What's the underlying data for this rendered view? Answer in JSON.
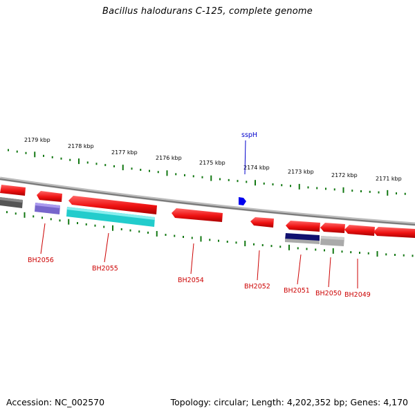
{
  "title": "Bacillus halodurans C-125, complete genome",
  "footer": {
    "accession": "Accession: NC_002570",
    "summary": "Topology: circular; Length: 4,202,352 bp; Genes: 4,170"
  },
  "colors": {
    "forward_gene": "#ee1111",
    "reverse_gene": "#ff2020",
    "label": "#cc0000",
    "feature_label": "#0000cc",
    "tick": "#117711",
    "backbone": "#888888"
  },
  "kbp_ticks": [
    "2179 kbp",
    "2178 kbp",
    "2177 kbp",
    "2176 kbp",
    "2175 kbp",
    "2174 kbp",
    "2173 kbp",
    "2172 kbp",
    "2171 kbp"
  ],
  "top_feature": {
    "label": "sspH",
    "color": "#0000dd"
  },
  "gene_labels": [
    "BH2056",
    "BH2055",
    "BH2054",
    "BH2052",
    "BH2051",
    "BH2050",
    "BH2049"
  ],
  "reverse_genes": [
    {
      "color": "#ee1111"
    },
    {
      "color": "#ee1111"
    },
    {
      "color": "#ee1111"
    },
    {
      "color": "#ee1111"
    },
    {
      "color": "#ee1111"
    },
    {
      "color": "#ee1111"
    },
    {
      "color": "#ee1111"
    },
    {
      "color": "#ee1111"
    },
    {
      "color": "#ee1111"
    }
  ],
  "domain_bars": [
    {
      "color": "#555555"
    },
    {
      "color": "#7766cc"
    },
    {
      "color": "#22cccc"
    },
    {
      "color": "#101070"
    },
    {
      "color": "#aaaaaa"
    }
  ]
}
